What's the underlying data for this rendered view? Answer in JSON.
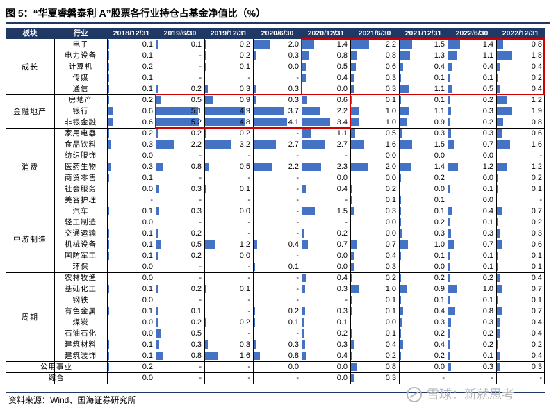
{
  "title": "图 5：“华夏睿磐泰利 A”股票各行业持仓占基金净值比（%）",
  "source": "资料来源：Wind、国海证券研究所",
  "watermark": "雪球：新就思考",
  "colors": {
    "header_bg": "#1f3864",
    "bar": "#4472c4",
    "highlight": "#d10000"
  },
  "headers": [
    "板块",
    "行业",
    "2018/12/31",
    "2019/6/30",
    "2019/12/31",
    "2020/6/30",
    "2020/12/31",
    "2021/6/30",
    "2021/12/31",
    "2022/6/30",
    "2022/12/31"
  ],
  "groups": [
    {
      "name": "成长",
      "rows": [
        {
          "industry": "电子",
          "values": [
            0.1,
            0.1,
            0.2,
            2.0,
            1.4,
            2.2,
            1.5,
            1.4,
            0.8
          ],
          "labels": [
            "0.1",
            "0.1",
            "0.2",
            "2.0",
            "1.4",
            "2.2",
            "1.5",
            "1.4",
            "0.8"
          ]
        },
        {
          "industry": "电力设备",
          "values": [
            0.1,
            0,
            0.2,
            0.3,
            0.8,
            0.8,
            1.3,
            1.1,
            1.8
          ],
          "labels": [
            "0.1",
            "-",
            "0.2",
            "0.3",
            "0.8",
            "0.8",
            "1.3",
            "1.1",
            "1.8"
          ]
        },
        {
          "industry": "计算机",
          "values": [
            0.2,
            0,
            0.1,
            0.0,
            0.5,
            0.6,
            0.4,
            0.4,
            0.4
          ],
          "labels": [
            "0.2",
            "-",
            "0.1",
            "0.0",
            "0.5",
            "0.6",
            "0.4",
            "0.4",
            "0.4"
          ]
        },
        {
          "industry": "传媒",
          "values": [
            0.1,
            0,
            0,
            0,
            0.4,
            0.3,
            0.1,
            0.1,
            0.2
          ],
          "labels": [
            "0.1",
            "-",
            "-",
            "-",
            "0.4",
            "0.3",
            "0.1",
            "0.1",
            "0.2"
          ]
        },
        {
          "industry": "通信",
          "values": [
            0.1,
            0.2,
            0.3,
            0.3,
            0.0,
            0.3,
            1.1,
            0.5,
            0.4
          ],
          "labels": [
            "0.1",
            "0.2",
            "0.3",
            "0.3",
            "0.0",
            "0.3",
            "1.1",
            "0.5",
            "0.4"
          ]
        }
      ]
    },
    {
      "name": "金融地产",
      "rows": [
        {
          "industry": "房地产",
          "values": [
            0.2,
            0.5,
            0.9,
            0.3,
            0.6,
            0.1,
            0.1,
            0.2,
            1.2
          ],
          "labels": [
            "0.2",
            "0.5",
            "0.9",
            "0.3",
            "0.6",
            "0.1",
            "0.1",
            "0.2",
            "1.2"
          ]
        },
        {
          "industry": "银行",
          "values": [
            0.6,
            5.1,
            4.9,
            3.7,
            2.2,
            1.0,
            1.1,
            0.3,
            1.9
          ],
          "labels": [
            "0.6",
            "5.1",
            "4.9",
            "3.7",
            "2.2",
            "1.0",
            "1.1",
            "0.3",
            "1.9"
          ]
        },
        {
          "industry": "非银金融",
          "values": [
            0.6,
            5.2,
            4.8,
            4.1,
            3.4,
            1.0,
            0.9,
            0.2,
            0.8
          ],
          "labels": [
            "0.6",
            "5.2",
            "4.8",
            "4.1",
            "3.4",
            "1.0",
            "0.9",
            "0.2",
            "0.8"
          ]
        }
      ]
    },
    {
      "name": "消费",
      "rows": [
        {
          "industry": "家用电器",
          "values": [
            0.2,
            0.2,
            0.2,
            0,
            1.1,
            0.5,
            0.3,
            0.3,
            0.6
          ],
          "labels": [
            "0.2",
            "0.2",
            "0.2",
            "-",
            "1.1",
            "0.5",
            "0.3",
            "0.3",
            "0.6"
          ]
        },
        {
          "industry": "食品饮料",
          "values": [
            0.3,
            2.2,
            3.2,
            2.7,
            2.7,
            1.6,
            1.5,
            0.7,
            1.6
          ],
          "labels": [
            "0.3",
            "2.2",
            "3.2",
            "2.7",
            "2.7",
            "1.6",
            "1.5",
            "0.7",
            "1.6"
          ]
        },
        {
          "industry": "纺织服饰",
          "values": [
            0.0,
            0,
            0,
            0,
            0,
            0.0,
            0.0,
            0.0,
            0
          ],
          "labels": [
            "0.0",
            "-",
            "-",
            "-",
            "-",
            "0.0",
            "0.0",
            "0.0",
            "-"
          ]
        },
        {
          "industry": "医药生物",
          "values": [
            0.3,
            0.8,
            0.5,
            2.2,
            2.3,
            2.0,
            1.4,
            1.2,
            1.2
          ],
          "labels": [
            "0.3",
            "0.8",
            "0.5",
            "2.2",
            "2.3",
            "2.0",
            "1.4",
            "1.2",
            "1.2"
          ]
        },
        {
          "industry": "商贸零售",
          "values": [
            0.1,
            0,
            0,
            0,
            0.0,
            0.0,
            0.2,
            0.0,
            0.2
          ],
          "labels": [
            "0.1",
            "-",
            "-",
            "-",
            "0.0",
            "0.0",
            "0.2",
            "0.0",
            "0.2"
          ]
        },
        {
          "industry": "社会服务",
          "values": [
            0.0,
            0.3,
            0.1,
            0,
            0.4,
            0.2,
            0.0,
            0.1,
            0.1
          ],
          "labels": [
            "0.0",
            "0.3",
            "0.1",
            "-",
            "0.4",
            "0.2",
            "0.0",
            "0.1",
            "0.1"
          ]
        },
        {
          "industry": "美容护理",
          "values": [
            0,
            0,
            0,
            0,
            0,
            0.1,
            0.1,
            0.0,
            0
          ],
          "labels": [
            "-",
            "-",
            "-",
            "-",
            "-",
            "0.1",
            "0.1",
            "0.0",
            "-"
          ]
        }
      ]
    },
    {
      "name": "中游制造",
      "rows": [
        {
          "industry": "汽车",
          "values": [
            0.1,
            0.3,
            0.0,
            0,
            1.5,
            0.3,
            0.1,
            0.4,
            0.7
          ],
          "labels": [
            "0.1",
            "0.3",
            "0.0",
            "-",
            "1.5",
            "0.3",
            "0.1",
            "0.4",
            "0.7"
          ]
        },
        {
          "industry": "轻工制造",
          "values": [
            0.0,
            0,
            0,
            0,
            0,
            0.0,
            0.2,
            0.1,
            0.2
          ],
          "labels": [
            "0.0",
            "-",
            "-",
            "-",
            "-",
            "0.0",
            "0.2",
            "0.1",
            "0.2"
          ]
        },
        {
          "industry": "交通运输",
          "values": [
            0.1,
            0.2,
            0,
            0,
            0.2,
            0.0,
            0.3,
            0.3,
            0.3
          ],
          "labels": [
            "0.1",
            "0.2",
            "-",
            "-",
            "0.2",
            "0.0",
            "0.3",
            "0.3",
            "0.3"
          ]
        },
        {
          "industry": "机械设备",
          "values": [
            0.1,
            0.5,
            1.2,
            0.4,
            0.7,
            0.7,
            1.0,
            0.7,
            0.6
          ],
          "labels": [
            "0.1",
            "0.5",
            "1.2",
            "0.4",
            "0.7",
            "0.7",
            "1.0",
            "0.7",
            "0.6"
          ]
        },
        {
          "industry": "国防军工",
          "values": [
            0.1,
            0.2,
            0.0,
            0,
            0.0,
            0.4,
            0.1,
            0.1,
            0.1
          ],
          "labels": [
            "0.1",
            "0.2",
            "0.0",
            "-",
            "0.0",
            "0.4",
            "0.1",
            "0.1",
            "0.1"
          ]
        },
        {
          "industry": "环保",
          "values": [
            0.0,
            0,
            0,
            0.1,
            0.0,
            0.3,
            0.0,
            0.1,
            0.1
          ],
          "labels": [
            "0.0",
            "-",
            "-",
            "0.1",
            "0.0",
            "0.3",
            "0.0",
            "0.1",
            "0.1"
          ]
        }
      ]
    },
    {
      "name": "周期",
      "rows": [
        {
          "industry": "农林牧渔",
          "values": [
            0.0,
            0,
            0,
            0,
            0.4,
            0.2,
            0.2,
            0.2,
            0.4
          ],
          "labels": [
            "0.0",
            "-",
            "-",
            "-",
            "0.4",
            "0.2",
            "0.2",
            "0.2",
            "0.4"
          ]
        },
        {
          "industry": "基础化工",
          "values": [
            0.1,
            0.2,
            0.1,
            0,
            0.3,
            1.0,
            0.9,
            1.0,
            0.7
          ],
          "labels": [
            "0.1",
            "0.2",
            "0.1",
            "-",
            "0.3",
            "1.0",
            "0.9",
            "1.0",
            "0.7"
          ]
        },
        {
          "industry": "钢铁",
          "values": [
            0.0,
            0,
            0,
            0,
            0,
            0.1,
            0.1,
            0.1,
            0.1
          ],
          "labels": [
            "0.0",
            "-",
            "-",
            "-",
            "-",
            "0.1",
            "0.1",
            "0.1",
            "0.1"
          ]
        },
        {
          "industry": "有色金属",
          "values": [
            0.1,
            0.1,
            0,
            0.2,
            0.3,
            0.1,
            0.4,
            0.8,
            0.7
          ],
          "labels": [
            "0.1",
            "0.1",
            "-",
            "0.2",
            "0.3",
            "0.1",
            "0.4",
            "0.8",
            "0.7"
          ]
        },
        {
          "industry": "煤炭",
          "values": [
            0.0,
            0.2,
            0.2,
            0.1,
            0.1,
            0.0,
            0.3,
            0.3,
            0.4
          ],
          "labels": [
            "0.0",
            "0.2",
            "0.2",
            "0.1",
            "0.1",
            "0.0",
            "0.3",
            "0.3",
            "0.4"
          ]
        },
        {
          "industry": "石油石化",
          "values": [
            0.0,
            0.5,
            0,
            0,
            0.2,
            0.1,
            0.2,
            0.2,
            0.4
          ],
          "labels": [
            "0.0",
            "0.5",
            "-",
            "-",
            "0.2",
            "0.1",
            "0.2",
            "0.2",
            "0.4"
          ]
        },
        {
          "industry": "建筑材料",
          "values": [
            0.1,
            0.3,
            0.3,
            0.3,
            0.3,
            0.4,
            0.4,
            0.2,
            0.2
          ],
          "labels": [
            "0.1",
            "0.3",
            "0.3",
            "0.3",
            "0.3",
            "0.4",
            "0.4",
            "0.2",
            "0.2"
          ]
        },
        {
          "industry": "建筑装饰",
          "values": [
            0.1,
            0.8,
            1.6,
            0.8,
            0.4,
            0.2,
            0.2,
            0.1,
            0.4
          ],
          "labels": [
            "0.1",
            "0.8",
            "1.6",
            "0.8",
            "0.4",
            "0.2",
            "0.2",
            "0.1",
            "0.4"
          ]
        }
      ]
    }
  ],
  "single_rows": [
    {
      "name": "公用事业",
      "values": [
        0.2,
        0,
        0,
        0.0,
        0.0,
        0.8,
        0.0,
        0.3,
        0.3
      ],
      "labels": [
        "0.2",
        "-",
        "-",
        "0.0",
        "0.0",
        "0.8",
        "0.0",
        "0.3",
        "0.3"
      ]
    },
    {
      "name": "综合",
      "values": [
        0.0,
        0,
        0,
        0,
        0.0,
        0.3,
        0,
        0,
        0
      ],
      "labels": [
        "0.0",
        "-",
        "-",
        "-",
        "0.0",
        "0.3",
        "-",
        "-",
        "-"
      ]
    }
  ]
}
